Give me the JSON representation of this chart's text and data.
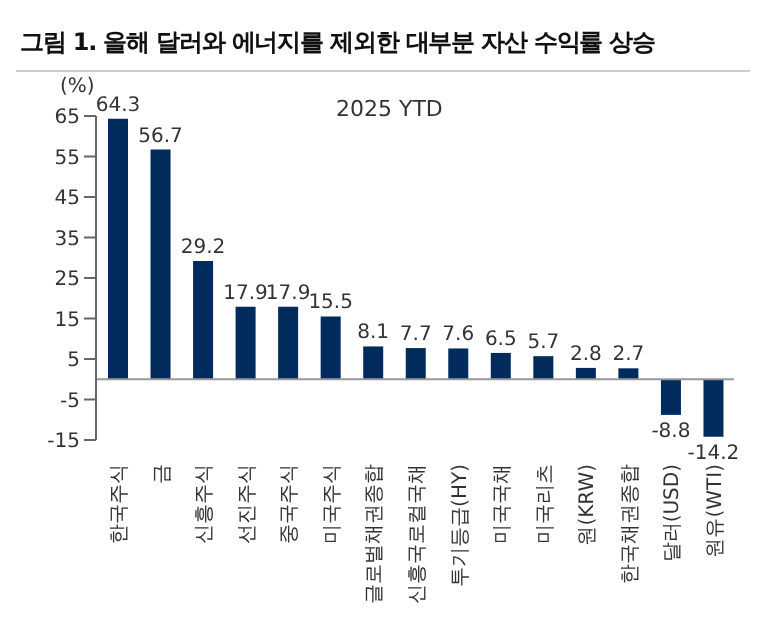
{
  "chart_data": {
    "type": "bar",
    "title": "그림 1. 올해 달러와 에너지를 제외한 대부분 자산 수익률 상승",
    "subtitle": "2025 YTD",
    "ylabel": "(%)",
    "categories": [
      "한국주식",
      "금",
      "신흥주식",
      "선진주식",
      "중국주식",
      "미국주식",
      "글로벌채권종합",
      "신흥국로컬국채",
      "투기등급(HY)",
      "미국국채",
      "미국리츠",
      "원(KRW)",
      "한국채권종합",
      "달러(USD)",
      "원유(WTI)"
    ],
    "values": [
      64.3,
      56.7,
      29.2,
      17.9,
      17.9,
      15.5,
      8.1,
      7.7,
      7.6,
      6.5,
      5.7,
      2.8,
      2.7,
      -8.8,
      -14.2
    ],
    "color": "#002b5c",
    "data_labels": true,
    "ylim": [
      -15,
      65
    ],
    "yticks": [
      -15,
      -5,
      5,
      15,
      25,
      35,
      45,
      55,
      65
    ],
    "grid": false,
    "legend": false
  }
}
